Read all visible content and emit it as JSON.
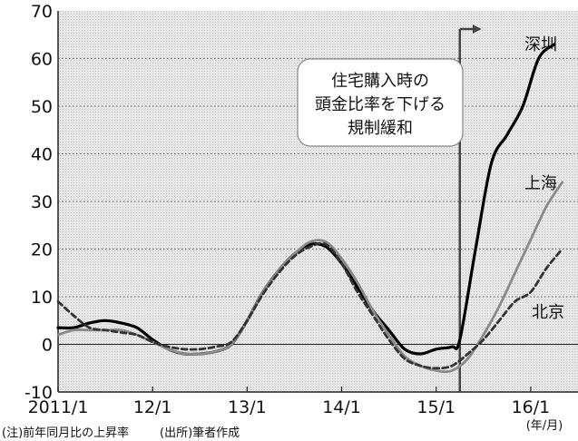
{
  "chart_data": {
    "type": "line",
    "ylim": [
      -10,
      70
    ],
    "yticks": [
      -10,
      0,
      10,
      20,
      30,
      40,
      50,
      60,
      70
    ],
    "xlim": [
      "2011-01",
      "2016-07"
    ],
    "xticks": [
      {
        "label": "2011/1",
        "x": "2011-01"
      },
      {
        "label": "12/1",
        "x": "2012-01"
      },
      {
        "label": "13/1",
        "x": "2013-01"
      },
      {
        "label": "14/1",
        "x": "2014-01"
      },
      {
        "label": "15/1",
        "x": "2015-01"
      },
      {
        "label": "16/1",
        "x": "2016-01"
      }
    ],
    "xunit": "(年/月)",
    "note_left": "(注)前年同月比の上昇率",
    "note_right": "(出所)筆者作成",
    "annotation": {
      "lines": [
        "住宅購入時の",
        "頭金比率を下げる",
        "規制緩和"
      ],
      "x": "2015-04"
    },
    "series": [
      {
        "name": "深圳",
        "style": "solid",
        "color": "#000000",
        "points": [
          [
            "2011-01",
            3.5
          ],
          [
            "2011-03",
            3.5
          ],
          [
            "2011-05",
            4.5
          ],
          [
            "2011-07",
            5
          ],
          [
            "2011-09",
            4.5
          ],
          [
            "2011-11",
            3.5
          ],
          [
            "2012-01",
            1
          ],
          [
            "2012-03",
            -1
          ],
          [
            "2012-05",
            -2
          ],
          [
            "2012-07",
            -2
          ],
          [
            "2012-09",
            -1.5
          ],
          [
            "2012-11",
            0
          ],
          [
            "2013-01",
            5
          ],
          [
            "2013-03",
            11
          ],
          [
            "2013-05",
            15.5
          ],
          [
            "2013-07",
            19
          ],
          [
            "2013-09",
            21
          ],
          [
            "2013-11",
            20.5
          ],
          [
            "2014-01",
            17
          ],
          [
            "2014-03",
            12
          ],
          [
            "2014-05",
            7
          ],
          [
            "2014-07",
            3
          ],
          [
            "2014-09",
            -1
          ],
          [
            "2014-11",
            -2
          ],
          [
            "2015-01",
            -1
          ],
          [
            "2015-03",
            -0.5
          ],
          [
            "2015-04",
            1
          ],
          [
            "2015-06",
            20
          ],
          [
            "2015-08",
            38
          ],
          [
            "2015-10",
            44
          ],
          [
            "2015-12",
            50
          ],
          [
            "2016-02",
            60
          ],
          [
            "2016-04",
            63
          ]
        ]
      },
      {
        "name": "上海",
        "style": "solid",
        "color": "#8a8a8a",
        "points": [
          [
            "2011-01",
            2
          ],
          [
            "2011-03",
            3
          ],
          [
            "2011-05",
            3
          ],
          [
            "2011-07",
            3
          ],
          [
            "2011-09",
            3
          ],
          [
            "2011-11",
            2
          ],
          [
            "2012-01",
            0.5
          ],
          [
            "2012-03",
            -1
          ],
          [
            "2012-05",
            -2
          ],
          [
            "2012-07",
            -2
          ],
          [
            "2012-09",
            -1.5
          ],
          [
            "2012-11",
            0
          ],
          [
            "2013-01",
            5
          ],
          [
            "2013-03",
            11
          ],
          [
            "2013-05",
            15.5
          ],
          [
            "2013-07",
            19
          ],
          [
            "2013-09",
            21.5
          ],
          [
            "2013-11",
            21.5
          ],
          [
            "2014-01",
            18
          ],
          [
            "2014-03",
            13
          ],
          [
            "2014-05",
            7
          ],
          [
            "2014-07",
            2
          ],
          [
            "2014-09",
            -2.5
          ],
          [
            "2014-11",
            -4.5
          ],
          [
            "2015-01",
            -5.5
          ],
          [
            "2015-03",
            -5.5
          ],
          [
            "2015-05",
            -3
          ],
          [
            "2015-07",
            2
          ],
          [
            "2015-09",
            8
          ],
          [
            "2015-11",
            15
          ],
          [
            "2016-01",
            22
          ],
          [
            "2016-03",
            29
          ],
          [
            "2016-05",
            34
          ]
        ]
      },
      {
        "name": "北京",
        "style": "dashed",
        "color": "#333333",
        "points": [
          [
            "2011-01",
            9
          ],
          [
            "2011-03",
            6
          ],
          [
            "2011-05",
            3.5
          ],
          [
            "2011-07",
            3
          ],
          [
            "2011-09",
            2.5
          ],
          [
            "2011-11",
            2
          ],
          [
            "2012-01",
            0.5
          ],
          [
            "2012-03",
            -0.5
          ],
          [
            "2012-05",
            -1
          ],
          [
            "2012-07",
            -1
          ],
          [
            "2012-09",
            -0.5
          ],
          [
            "2012-11",
            0.5
          ],
          [
            "2013-01",
            5
          ],
          [
            "2013-03",
            10.5
          ],
          [
            "2013-05",
            15
          ],
          [
            "2013-07",
            18.5
          ],
          [
            "2013-09",
            20.5
          ],
          [
            "2013-11",
            21
          ],
          [
            "2014-01",
            17
          ],
          [
            "2014-03",
            11
          ],
          [
            "2014-05",
            6
          ],
          [
            "2014-07",
            1
          ],
          [
            "2014-09",
            -3
          ],
          [
            "2014-11",
            -4.5
          ],
          [
            "2015-01",
            -5
          ],
          [
            "2015-03",
            -4.5
          ],
          [
            "2015-05",
            -2
          ],
          [
            "2015-07",
            1
          ],
          [
            "2015-09",
            5
          ],
          [
            "2015-11",
            9
          ],
          [
            "2016-01",
            11
          ],
          [
            "2016-03",
            16
          ],
          [
            "2016-05",
            20
          ]
        ]
      }
    ]
  }
}
